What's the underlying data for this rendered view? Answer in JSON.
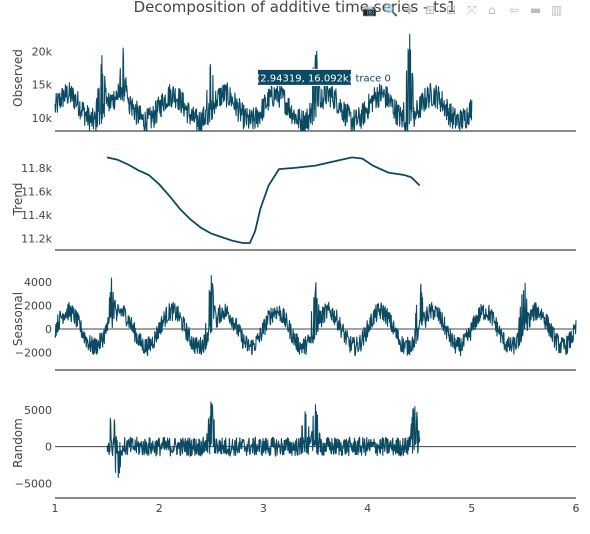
{
  "title": "Decomposition of additive time series - ts1",
  "modebar": [
    {
      "icon": "camera-icon",
      "glyph": "📷"
    },
    {
      "icon": "zoom-icon",
      "glyph": "🔍"
    },
    {
      "icon": "pan-icon",
      "glyph": "✚"
    },
    {
      "icon": "zoom-in-icon",
      "glyph": "⊞"
    },
    {
      "icon": "zoom-out-icon",
      "glyph": "⊟"
    },
    {
      "icon": "autoscale-icon",
      "glyph": "⤧"
    },
    {
      "icon": "home-icon",
      "glyph": "⌂"
    },
    {
      "icon": "spike-lines-icon",
      "glyph": "⇦"
    },
    {
      "icon": "compare-hover-icon",
      "glyph": "▬"
    },
    {
      "icon": "plotly-logo-icon",
      "glyph": "▥"
    }
  ],
  "tooltip": {
    "text": "(2.94319, 16.092k)",
    "trace": "trace 0",
    "x": 2.94319,
    "y": 16092
  },
  "colors": {
    "line": "#0b4a63",
    "axis": "#444444",
    "tooltip_bg": "#0b4a63"
  },
  "chart_data": {
    "type": "line",
    "x_axis": {
      "range": [
        1,
        6
      ],
      "ticks": [
        1,
        2,
        3,
        4,
        5,
        6
      ]
    },
    "panels": [
      {
        "id": "observed",
        "ylabel": "Observed",
        "yrange": [
          8000,
          24000
        ],
        "ticks": [
          10000,
          15000,
          20000
        ],
        "tick_labels": [
          "10k",
          "15k",
          "20k"
        ],
        "x_start": 1,
        "x_end": 5,
        "base": 11500,
        "amp": 2000,
        "noise": 3800,
        "spikes": [
          [
            1.45,
            20500
          ],
          [
            1.65,
            21500
          ],
          [
            2.5,
            21500
          ],
          [
            3.5,
            22500
          ],
          [
            4.4,
            23500
          ]
        ]
      },
      {
        "id": "trend",
        "ylabel": "Trend",
        "yrange": [
          11100,
          11970
        ],
        "ticks": [
          11200,
          11400,
          11600,
          11800
        ],
        "tick_labels": [
          "11.2k",
          "11.4k",
          "11.6k",
          "11.8k"
        ],
        "x_start": 1.5,
        "x_end": 4.5,
        "points": [
          [
            1.5,
            11890
          ],
          [
            1.6,
            11870
          ],
          [
            1.7,
            11830
          ],
          [
            1.8,
            11780
          ],
          [
            1.9,
            11740
          ],
          [
            2.0,
            11660
          ],
          [
            2.1,
            11560
          ],
          [
            2.2,
            11450
          ],
          [
            2.3,
            11360
          ],
          [
            2.4,
            11290
          ],
          [
            2.5,
            11240
          ],
          [
            2.6,
            11210
          ],
          [
            2.7,
            11180
          ],
          [
            2.8,
            11160
          ],
          [
            2.87,
            11160
          ],
          [
            2.92,
            11260
          ],
          [
            2.97,
            11450
          ],
          [
            3.05,
            11650
          ],
          [
            3.15,
            11790
          ],
          [
            3.3,
            11800
          ],
          [
            3.5,
            11820
          ],
          [
            3.7,
            11860
          ],
          [
            3.85,
            11890
          ],
          [
            3.95,
            11880
          ],
          [
            4.05,
            11820
          ],
          [
            4.2,
            11760
          ],
          [
            4.35,
            11740
          ],
          [
            4.42,
            11720
          ],
          [
            4.5,
            11650
          ]
        ]
      },
      {
        "id": "seasonal",
        "ylabel": "Seasonal",
        "yrange": [
          -3500,
          5200
        ],
        "ticks": [
          -2000,
          0,
          2000,
          4000
        ],
        "tick_labels": [
          "−2000",
          "0",
          "2000",
          "4000"
        ],
        "x_start": 1,
        "x_end": 6,
        "base": 0,
        "amp": 1500,
        "noise": 1600,
        "spikes": [
          [
            1.55,
            5000
          ],
          [
            2.5,
            4900
          ],
          [
            3.5,
            5000
          ],
          [
            4.5,
            4900
          ],
          [
            5.5,
            4900
          ]
        ]
      },
      {
        "id": "random",
        "ylabel": "Random",
        "yrange": [
          -7000,
          8000
        ],
        "ticks": [
          -5000,
          0,
          5000
        ],
        "tick_labels": [
          "−5000",
          "0",
          "5000"
        ],
        "x_start": 1.5,
        "x_end": 4.5,
        "base": 0,
        "amp": 0,
        "noise": 2600,
        "spikes": [
          [
            1.55,
            6000
          ],
          [
            2.5,
            7000
          ],
          [
            3.4,
            6500
          ],
          [
            3.5,
            6800
          ],
          [
            4.45,
            7800
          ],
          [
            1.6,
            -6200
          ]
        ]
      }
    ]
  }
}
